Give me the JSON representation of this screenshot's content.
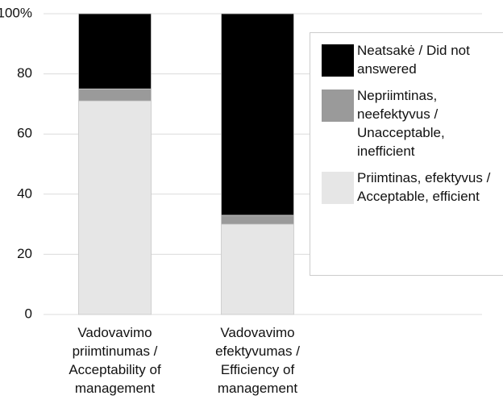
{
  "chart_data": {
    "type": "stacked_bar",
    "categories": [
      "Vadovavimo priimtinumas / Acceptability of management",
      "Vadovavimo efektyvumas / Efficiency of management"
    ],
    "series": [
      {
        "name": "Priimtinas, efektyvus / Acceptable, efficient",
        "color": "#e6e6e6",
        "values": [
          71,
          30
        ]
      },
      {
        "name": "Nepriimtinas, neefektyvus / Unacceptable, inefficient",
        "color": "#9a9a9a",
        "values": [
          4,
          3
        ]
      },
      {
        "name": "Neatsakė / Did not answered",
        "color": "#000000",
        "values": [
          25,
          67
        ]
      }
    ],
    "ylim": [
      0,
      100
    ],
    "yticks": [
      0,
      20,
      40,
      60,
      80,
      {
        "value": 100,
        "label": "100%"
      }
    ],
    "grid": true
  }
}
